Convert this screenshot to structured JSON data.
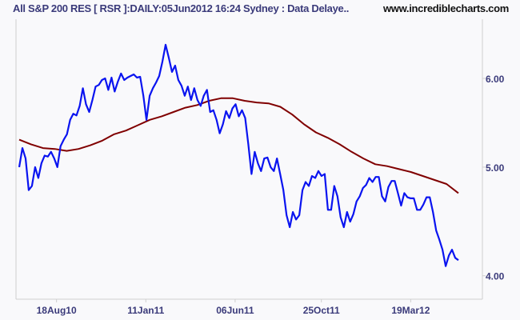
{
  "header": {
    "title": "All S&P 200 RES [ RSR ]:DAILY:05Jun2012 16:24 Sydney : Data Delaye..",
    "url": "www.incrediblecharts.com"
  },
  "chart_data": {
    "type": "line",
    "title": "All S&P 200 RES [ RSR ]:DAILY:05Jun2012 16:24 Sydney : Data Delaye..",
    "x_range": [
      "2010-06-18",
      "2012-06-05"
    ],
    "x_ticks": [
      {
        "date": "2010-08-18",
        "label": "18Aug10"
      },
      {
        "date": "2011-01-11",
        "label": "11Jan11"
      },
      {
        "date": "2011-06-06",
        "label": "06Jun11"
      },
      {
        "date": "2011-10-25",
        "label": "25Oct11"
      },
      {
        "date": "2012-03-19",
        "label": "19Mar12"
      }
    ],
    "y_scale": "log",
    "ylim": [
      3.88,
      6.75
    ],
    "y_ticks": [
      {
        "value": 6.0,
        "label": "6.00"
      },
      {
        "value": 5.0,
        "label": "5.00"
      },
      {
        "value": 4.0,
        "label": "4.00"
      }
    ],
    "y_axis_position": "right",
    "grid": false,
    "series": [
      {
        "color": "#0a14f0",
        "values": [
          5.0,
          5.2,
          5.09,
          4.77,
          4.81,
          5.0,
          4.89,
          5.04,
          5.12,
          5.11,
          5.16,
          5.09,
          5.0,
          5.22,
          5.29,
          5.35,
          5.51,
          5.58,
          5.56,
          5.67,
          5.88,
          5.69,
          5.6,
          5.74,
          5.9,
          5.92,
          5.98,
          6.0,
          5.86,
          6.01,
          5.84,
          5.96,
          6.06,
          5.98,
          6.01,
          6.03,
          6.05,
          6.01,
          6.02,
          5.79,
          5.51,
          5.79,
          5.88,
          5.95,
          6.03,
          6.21,
          6.43,
          6.26,
          6.08,
          6.16,
          5.98,
          5.91,
          5.79,
          5.9,
          5.74,
          5.88,
          5.74,
          5.67,
          5.79,
          5.86,
          5.6,
          5.62,
          5.51,
          5.36,
          5.46,
          5.61,
          5.53,
          5.64,
          5.69,
          5.55,
          5.62,
          5.53,
          5.24,
          4.93,
          5.16,
          5.04,
          4.96,
          5.09,
          5.1,
          5.0,
          4.96,
          5.09,
          4.93,
          4.77,
          4.53,
          4.42,
          4.56,
          4.49,
          4.53,
          4.77,
          4.85,
          4.81,
          4.91,
          4.89,
          4.96,
          4.91,
          4.93,
          4.58,
          4.58,
          4.81,
          4.71,
          4.51,
          4.42,
          4.56,
          4.47,
          4.54,
          4.66,
          4.71,
          4.79,
          4.82,
          4.89,
          4.85,
          4.9,
          4.9,
          4.71,
          4.66,
          4.8,
          4.86,
          4.86,
          4.74,
          4.62,
          4.74,
          4.7,
          4.69,
          4.69,
          4.58,
          4.58,
          4.63,
          4.7,
          4.7,
          4.56,
          4.39,
          4.31,
          4.22,
          4.08,
          4.17,
          4.22,
          4.15,
          4.13
        ]
      },
      {
        "color": "#800000",
        "values": [
          5.29,
          5.24,
          5.2,
          5.19,
          5.17,
          5.19,
          5.23,
          5.28,
          5.35,
          5.39,
          5.45,
          5.51,
          5.55,
          5.6,
          5.65,
          5.68,
          5.73,
          5.76,
          5.76,
          5.73,
          5.71,
          5.7,
          5.66,
          5.57,
          5.46,
          5.37,
          5.31,
          5.24,
          5.16,
          5.09,
          5.03,
          5.01,
          4.98,
          4.95,
          4.91,
          4.87,
          4.83,
          4.74
        ]
      }
    ]
  }
}
